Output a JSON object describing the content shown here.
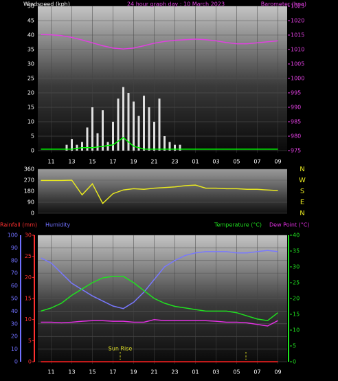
{
  "chart_data": [
    {
      "type": "combo",
      "title": "24 hour graph day : 10 March 2023",
      "y_label": "Windspeed (kph)",
      "y2_label": "Barometer (hpa)",
      "y_color": "#ffffff",
      "y2_color": "#e040e0",
      "xlim": [
        9.7,
        33.9
      ],
      "xticks": [
        11,
        13,
        15,
        17,
        19,
        21,
        23,
        {
          "value": 25,
          "label": "01"
        },
        {
          "value": 27,
          "label": "03"
        },
        {
          "value": 29,
          "label": "05"
        },
        {
          "value": 31,
          "label": "07"
        },
        {
          "value": 33,
          "label": "09"
        }
      ],
      "ylim": [
        0,
        50
      ],
      "yticks": [
        0,
        5,
        10,
        15,
        20,
        25,
        30,
        35,
        40,
        45,
        50
      ],
      "y2lim": [
        975,
        1025
      ],
      "y2ticks": [
        975,
        980,
        985,
        990,
        995,
        1000,
        1005,
        1010,
        1015,
        1020,
        1025
      ],
      "grid": true,
      "x": [
        10,
        11,
        12,
        13,
        14,
        15,
        16,
        17,
        18,
        19,
        20,
        21,
        22,
        23,
        24,
        25,
        26,
        27,
        28,
        29,
        30,
        31,
        32,
        33
      ],
      "series": [
        {
          "type": "bar",
          "color": "#e0e0e0",
          "x": [
            12,
            12.5,
            13,
            13.5,
            14,
            14.5,
            15,
            15.5,
            16,
            16.5,
            17,
            17.5,
            18,
            18.5,
            19,
            19.5,
            20,
            20.5,
            21,
            21.5,
            22,
            22.5,
            23,
            23.5,
            24
          ],
          "values": [
            0,
            2,
            4,
            2,
            3,
            8,
            15,
            6,
            14,
            3,
            10,
            18,
            22,
            20,
            17,
            12,
            19,
            15,
            10,
            18,
            5,
            3,
            2,
            2,
            0
          ]
        },
        {
          "type": "line",
          "color": "#00ff00",
          "values": [
            0.5,
            0.5,
            0.5,
            0.5,
            1,
            1,
            1.5,
            2,
            4.5,
            1.5,
            0.5,
            0.5,
            0.5,
            0.5,
            0.5,
            0.5,
            0.5,
            0.5,
            0.5,
            0.5,
            0.5,
            0.5,
            0.5,
            0.5
          ]
        },
        {
          "type": "line",
          "color": "#e040e0",
          "axis": "y2",
          "values": [
            1015.2,
            1015.1,
            1014.8,
            1014.2,
            1013.3,
            1012.3,
            1011.3,
            1010.5,
            1010.2,
            1010.5,
            1011.3,
            1012.2,
            1012.8,
            1013.2,
            1013.4,
            1013.6,
            1013.4,
            1013.0,
            1012.4,
            1012.0,
            1012.0,
            1012.3,
            1012.7,
            1013.0
          ]
        }
      ]
    },
    {
      "type": "combo",
      "y_color": "#ffffff",
      "xlim": [
        9.7,
        33.9
      ],
      "ylim": [
        0,
        360
      ],
      "yticks": [
        0,
        90,
        180,
        270,
        360
      ],
      "grid": true,
      "compass": [
        "N",
        "W",
        "S",
        "E",
        "N"
      ],
      "compass_color": "#e8e820",
      "x": [
        10,
        11,
        12,
        13,
        14,
        15,
        16,
        17,
        18,
        19,
        20,
        21,
        22,
        23,
        24,
        25,
        26,
        27,
        28,
        29,
        30,
        31,
        32,
        33
      ],
      "series": [
        {
          "type": "line",
          "color": "#e8e820",
          "values": [
            268,
            268,
            268,
            270,
            150,
            240,
            80,
            160,
            190,
            200,
            195,
            205,
            210,
            215,
            225,
            230,
            205,
            205,
            200,
            200,
            195,
            195,
            190,
            185
          ]
        }
      ]
    },
    {
      "type": "combo",
      "y_label": "Humidity",
      "y3_label": "Rainfall (mm)",
      "y2_label": "Temperature (°C)",
      "dew_label": "Dew Point (°C)",
      "y_color": "#7070ff",
      "y3_color": "#ff3030",
      "y2_color": "#20e020",
      "dew_color": "#e030e0",
      "xlim": [
        9.7,
        33.9
      ],
      "xticks": [
        11,
        13,
        15,
        17,
        19,
        21,
        23,
        {
          "value": 25,
          "label": "01"
        },
        {
          "value": 27,
          "label": "03"
        },
        {
          "value": 29,
          "label": "05"
        },
        {
          "value": 31,
          "label": "07"
        },
        {
          "value": 33,
          "label": "09"
        }
      ],
      "ylim": [
        0,
        100
      ],
      "yticks": [
        0,
        10,
        20,
        30,
        40,
        50,
        60,
        70,
        80,
        90,
        100
      ],
      "y3lim": [
        0,
        30
      ],
      "y3ticks": [
        0,
        5,
        10,
        15,
        20,
        25,
        30
      ],
      "y2lim": [
        0,
        40
      ],
      "y2ticks": [
        0,
        5,
        10,
        15,
        20,
        25,
        30,
        35,
        40
      ],
      "grid": true,
      "annotation": "Sun Rise",
      "sunrise_x": 29.9,
      "x": [
        10,
        11,
        12,
        13,
        14,
        15,
        16,
        17,
        18,
        19,
        20,
        21,
        22,
        23,
        24,
        25,
        26,
        27,
        28,
        29,
        30,
        31,
        32,
        33
      ],
      "series": [
        {
          "type": "line",
          "color": "#7878ff",
          "values": [
            82,
            78,
            70,
            62,
            57,
            52,
            48,
            44,
            42,
            47,
            55,
            65,
            75,
            80,
            84,
            86,
            87,
            87,
            87,
            86,
            86,
            87,
            88,
            87
          ]
        },
        {
          "type": "line",
          "color": "#20e020",
          "axis": "y2",
          "values": [
            16,
            17,
            18.5,
            21,
            23,
            25,
            26.5,
            27,
            27,
            25,
            22.5,
            20,
            18.5,
            17.5,
            17,
            16.5,
            16,
            16,
            16,
            15.5,
            14.5,
            13.5,
            13,
            15.5
          ]
        },
        {
          "type": "line",
          "color": "#e030e0",
          "axis": "y2",
          "values": [
            12.5,
            12.5,
            12.3,
            12.5,
            12.8,
            13,
            13,
            12.8,
            12.8,
            12.5,
            12.5,
            13.3,
            13,
            13,
            13,
            13,
            13,
            12.8,
            12.5,
            12.5,
            12.3,
            11.8,
            11.3,
            13
          ]
        },
        {
          "type": "line",
          "color": "#ff2020",
          "axis": "y3",
          "values": [
            0,
            0,
            0,
            0,
            0,
            0,
            0,
            0,
            0,
            0,
            0,
            0,
            0,
            0,
            0,
            0,
            0,
            0,
            0,
            0,
            0,
            0,
            0,
            0
          ]
        }
      ]
    }
  ]
}
